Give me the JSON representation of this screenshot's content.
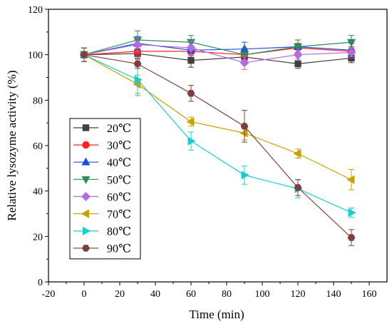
{
  "chart_data": {
    "type": "line",
    "xlabel": "Time (min)",
    "ylabel": "Relative lysozyme activity (%)",
    "xlim": [
      -20,
      170
    ],
    "ylim": [
      0,
      120
    ],
    "xticks": [
      -20,
      0,
      20,
      40,
      60,
      80,
      100,
      120,
      140,
      160
    ],
    "yticks": [
      0,
      20,
      40,
      60,
      80,
      100,
      120
    ],
    "x": [
      0,
      30,
      60,
      90,
      120,
      150
    ],
    "legend_position": "left-lower",
    "grid": false,
    "series": [
      {
        "name": "20℃",
        "color": "#404040",
        "marker": "square",
        "values": [
          100,
          100.5,
          97.5,
          99,
          96,
          98.5
        ],
        "err": [
          3,
          2,
          3,
          2,
          2,
          2
        ]
      },
      {
        "name": "30℃",
        "color": "#ff2020",
        "marker": "circle",
        "values": [
          100,
          101.5,
          101.5,
          100,
          103,
          101.5
        ],
        "err": [
          3,
          2,
          2,
          2,
          2,
          2
        ]
      },
      {
        "name": "40℃",
        "color": "#1f4fd8",
        "marker": "triangle-up",
        "values": [
          100,
          105,
          102,
          102.5,
          103.5,
          102
        ],
        "err": [
          3,
          3,
          2,
          3,
          3,
          3
        ]
      },
      {
        "name": "50℃",
        "color": "#2e8b57",
        "marker": "triangle-down",
        "values": [
          100,
          106.5,
          105.5,
          100,
          103.5,
          105.5
        ],
        "err": [
          3,
          4,
          3,
          3,
          3,
          3
        ]
      },
      {
        "name": "60℃",
        "color": "#b36ae2",
        "marker": "diamond",
        "values": [
          100,
          104.5,
          103,
          96.5,
          100,
          101
        ],
        "err": [
          3,
          3,
          3,
          3,
          2,
          2
        ]
      },
      {
        "name": "70℃",
        "color": "#c9a000",
        "marker": "triangle-left",
        "values": [
          100,
          87,
          70.5,
          65.5,
          56.5,
          45
        ],
        "err": [
          3,
          4,
          2,
          3,
          2,
          4.5
        ]
      },
      {
        "name": "80℃",
        "color": "#19cdd0",
        "marker": "triangle-right",
        "values": [
          100,
          89,
          62,
          47,
          41,
          30.5
        ],
        "err": [
          3,
          7,
          4,
          4,
          4,
          2
        ]
      },
      {
        "name": "90℃",
        "color": "#7b3f3f",
        "marker": "hexagon",
        "values": [
          100,
          96,
          83,
          68.5,
          41.5,
          19.5
        ],
        "err": [
          3,
          2,
          3.5,
          7,
          3.5,
          3.5
        ]
      }
    ]
  }
}
